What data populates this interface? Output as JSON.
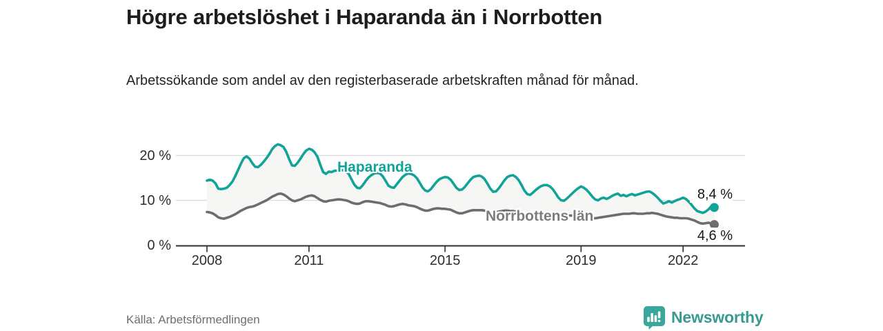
{
  "header": {
    "title": "Högre arbetslöshet i Haparanda än i Norrbotten",
    "subtitle": "Arbetssökande som andel av den registerbaserade arbetskraften månad för månad."
  },
  "footer": {
    "source": "Källa: Arbetsförmedlingen",
    "brand": "Newsworthy",
    "brand_icon": "bar-chart-speech-bubble"
  },
  "colors": {
    "accent_teal": "#10a398",
    "line_gray": "#6d6d70",
    "gray_label": "#7d7d80",
    "band_fill": "#f6f6f5",
    "grid": "#d8d8d8",
    "axis": "#2f2f2f",
    "text_dark": "#1d1d1b",
    "logo_teal": "#3aa79c"
  },
  "chart_data": {
    "type": "line",
    "title": "Högre arbetslöshet i Haparanda än i Norrbotten",
    "xlabel": "",
    "ylabel": "Arbetssökande som andel av den registerbaserade arbetskraften",
    "x_unit": "month",
    "x_start_year": 2008,
    "x_end_year": 2022.92,
    "ylim": [
      0,
      23
    ],
    "grid": "horizontal",
    "legend_position": "inline-labels",
    "area_between_series": true,
    "xticks": [
      {
        "year": 2008,
        "label": "2008"
      },
      {
        "year": 2011,
        "label": "2011"
      },
      {
        "year": 2015,
        "label": "2015"
      },
      {
        "year": 2019,
        "label": "2019"
      },
      {
        "year": 2022,
        "label": "2022"
      }
    ],
    "yticks": [
      {
        "value": 20,
        "label": "20 %"
      },
      {
        "value": 10,
        "label": "10 %"
      },
      {
        "value": 0,
        "label": "0 %"
      }
    ],
    "series": [
      {
        "name": "Haparanda",
        "color": "#10a398",
        "end_label": "8,4 %",
        "end_value": 8.4,
        "values": [
          14.4,
          14.6,
          14.4,
          13.8,
          12.6,
          12.5,
          12.6,
          12.8,
          13.4,
          14.2,
          15.4,
          16.8,
          18.2,
          19.4,
          19.8,
          19.3,
          18.3,
          17.5,
          17.4,
          17.9,
          18.6,
          19.4,
          20.3,
          21.4,
          22.1,
          22.5,
          22.3,
          21.9,
          20.8,
          19.2,
          17.8,
          17.7,
          18.4,
          19.3,
          20.3,
          21.1,
          21.5,
          21.3,
          20.7,
          19.7,
          17.9,
          16.3,
          15.9,
          16.4,
          16.3,
          16.6,
          16.6,
          16.8,
          16.7,
          16.5,
          15.9,
          14.7,
          13.5,
          12.8,
          12.7,
          13.4,
          14.3,
          15.1,
          15.6,
          16.0,
          16.1,
          16.0,
          15.4,
          14.4,
          13.3,
          12.9,
          12.8,
          13.6,
          14.4,
          15.2,
          15.7,
          16.0,
          15.9,
          15.6,
          15.0,
          14.0,
          12.9,
          12.2,
          12.0,
          12.5,
          13.3,
          14.1,
          14.7,
          15.0,
          15.2,
          15.1,
          14.6,
          13.7,
          12.8,
          12.3,
          12.4,
          13.0,
          13.8,
          14.6,
          15.2,
          15.4,
          15.5,
          15.3,
          14.7,
          13.7,
          12.6,
          11.9,
          12.0,
          12.7,
          13.6,
          14.5,
          15.2,
          15.5,
          15.6,
          15.2,
          14.5,
          13.4,
          12.2,
          11.4,
          11.2,
          11.7,
          12.3,
          12.8,
          13.2,
          13.4,
          13.4,
          13.1,
          12.5,
          11.6,
          10.6,
          10.0,
          9.9,
          10.4,
          11.0,
          11.6,
          12.2,
          12.7,
          13.1,
          12.8,
          12.3,
          11.6,
          10.8,
          10.2,
          10.0,
          10.4,
          10.6,
          10.3,
          10.6,
          11.0,
          11.3,
          11.5,
          11.0,
          11.2,
          10.9,
          11.2,
          11.4,
          11.1,
          11.3,
          11.5,
          11.7,
          11.9,
          12.0,
          11.7,
          11.2,
          10.6,
          9.9,
          9.3,
          9.5,
          9.8,
          9.5,
          9.8,
          10.1,
          10.3,
          10.6,
          10.3,
          9.7,
          9.0,
          8.2,
          7.6,
          7.4,
          7.2,
          7.5,
          8.0,
          8.7,
          8.4
        ]
      },
      {
        "name": "Norrbottens län",
        "color": "#6d6d70",
        "end_label": "4,6 %",
        "end_value": 4.6,
        "values": [
          7.4,
          7.3,
          7.1,
          6.7,
          6.2,
          6.0,
          5.9,
          6.1,
          6.3,
          6.6,
          6.9,
          7.3,
          7.7,
          8.0,
          8.3,
          8.5,
          8.6,
          8.8,
          9.1,
          9.4,
          9.7,
          10.0,
          10.4,
          10.8,
          11.1,
          11.4,
          11.5,
          11.3,
          10.9,
          10.4,
          10.0,
          9.8,
          10.0,
          10.2,
          10.5,
          10.8,
          11.0,
          11.1,
          10.9,
          10.5,
          10.1,
          9.8,
          9.7,
          9.9,
          10.0,
          10.1,
          10.2,
          10.2,
          10.1,
          10.0,
          9.8,
          9.5,
          9.3,
          9.2,
          9.3,
          9.6,
          9.8,
          9.8,
          9.7,
          9.6,
          9.5,
          9.4,
          9.2,
          9.0,
          8.7,
          8.6,
          8.7,
          8.9,
          9.1,
          9.2,
          9.1,
          8.9,
          8.8,
          8.7,
          8.5,
          8.2,
          7.9,
          7.7,
          7.7,
          7.9,
          8.1,
          8.2,
          8.2,
          8.1,
          8.1,
          8.0,
          7.9,
          7.6,
          7.3,
          7.1,
          7.1,
          7.3,
          7.5,
          7.7,
          7.8,
          7.8,
          7.8,
          7.8,
          7.7,
          7.5,
          7.3,
          7.2,
          7.3,
          7.5,
          7.6,
          7.7,
          7.7,
          7.6,
          7.6,
          7.5,
          7.4,
          7.2,
          7.0,
          6.9,
          7.0,
          7.1,
          7.2,
          7.3,
          7.3,
          7.2,
          7.1,
          7.0,
          6.9,
          6.7,
          6.5,
          6.4,
          6.4,
          6.5,
          6.6,
          6.6,
          6.6,
          6.5,
          6.4,
          6.3,
          6.2,
          6.1,
          6.0,
          6.0,
          6.1,
          6.2,
          6.3,
          6.4,
          6.5,
          6.6,
          6.7,
          6.8,
          6.9,
          7.0,
          7.0,
          7.0,
          7.1,
          7.1,
          7.0,
          7.0,
          7.0,
          7.1,
          7.1,
          7.2,
          7.1,
          7.0,
          6.8,
          6.6,
          6.4,
          6.3,
          6.2,
          6.1,
          6.1,
          6.0,
          6.0,
          6.0,
          5.9,
          5.7,
          5.5,
          5.2,
          4.9,
          4.8,
          4.9,
          5.0,
          4.8,
          4.6
        ]
      }
    ]
  }
}
